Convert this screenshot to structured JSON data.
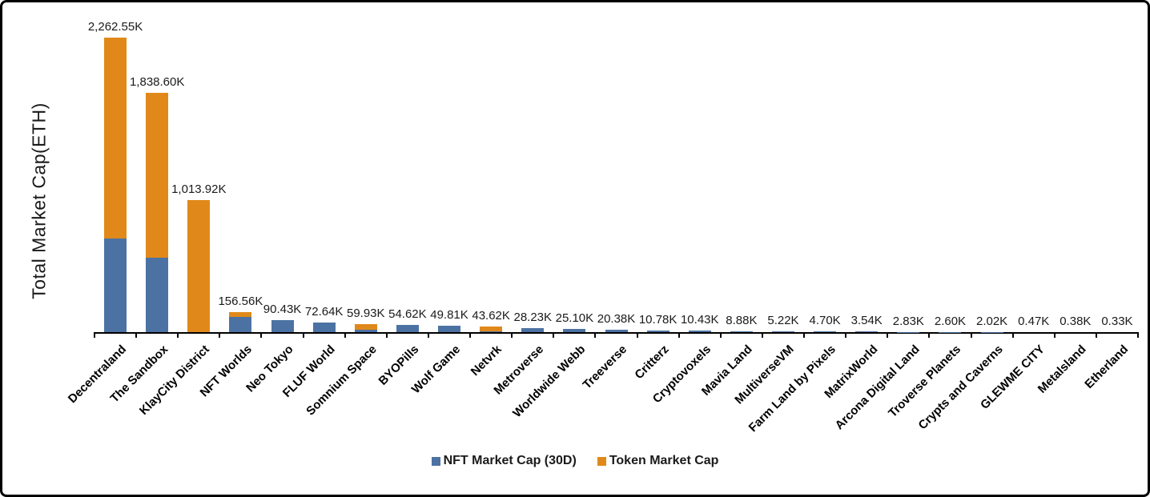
{
  "frame": {
    "background": "#ffffff",
    "border_color": "#000000"
  },
  "chart_data": {
    "type": "bar",
    "stacked": true,
    "title": "",
    "xlabel": "",
    "ylabel": "Total Market Cap(ETH)",
    "ylim": [
      0,
      2400
    ],
    "grid": false,
    "y_axis_ticks_visible": false,
    "legend_position": "bottom",
    "value_unit": "K",
    "categories": [
      "Decentraland",
      "The Sandbox",
      "KlayCity District",
      "NFT Worlds",
      "Neo Tokyo",
      "FLUF World",
      "Somnium Space",
      "BYOPills",
      "Wolf Game",
      "Netvrk",
      "Metroverse",
      "Worldwide Webb",
      "Treeverse",
      "Critterz",
      "Cryptovoxels",
      "Mavia Land",
      "MultiverseVM",
      "Farm Land by Pixels",
      "MatrixWorld",
      "Arcona Digital Land",
      "Troverse Planets",
      "Crypts and Caverns",
      "GLEWME CITY",
      "Metalsland",
      "Etherland"
    ],
    "series": [
      {
        "name": "NFT Market Cap (30D)",
        "color": "#4C72A3",
        "values": [
          719.5,
          572.0,
          0,
          118.0,
          90.43,
          72.64,
          17.93,
          54.62,
          49.81,
          8.0,
          28.23,
          25.1,
          20.38,
          10.78,
          10.43,
          8.88,
          5.22,
          4.7,
          3.54,
          2.83,
          2.6,
          2.02,
          0.47,
          0.38,
          0.33
        ]
      },
      {
        "name": "Token Market Cap",
        "color": "#E0891A",
        "values": [
          1543.05,
          1266.6,
          1013.92,
          38.56,
          0,
          0,
          42.0,
          0,
          0,
          35.62,
          0,
          0,
          0,
          0,
          0,
          0,
          0,
          0,
          0,
          0,
          0,
          0,
          0,
          0,
          0
        ]
      }
    ],
    "totals": [
      2262.55,
      1838.6,
      1013.92,
      156.56,
      90.43,
      72.64,
      59.93,
      54.62,
      49.81,
      43.62,
      28.23,
      25.1,
      20.38,
      10.78,
      10.43,
      8.88,
      5.22,
      4.7,
      3.54,
      2.83,
      2.6,
      2.02,
      0.47,
      0.38,
      0.33
    ],
    "total_labels": [
      "2,262.55K",
      "1,838.60K",
      "1,013.92K",
      "156.56K",
      "90.43K",
      "72.64K",
      "59.93K",
      "54.62K",
      "49.81K",
      "43.62K",
      "28.23K",
      "25.10K",
      "20.38K",
      "10.78K",
      "10.43K",
      "8.88K",
      "5.22K",
      "4.70K",
      "3.54K",
      "2.83K",
      "2.60K",
      "2.02K",
      "0.47K",
      "0.38K",
      "0.33K"
    ]
  },
  "legend": {
    "items": [
      {
        "label": "NFT Market Cap (30D)",
        "color": "#4C72A3"
      },
      {
        "label": "Token Market Cap",
        "color": "#E0891A"
      }
    ]
  }
}
